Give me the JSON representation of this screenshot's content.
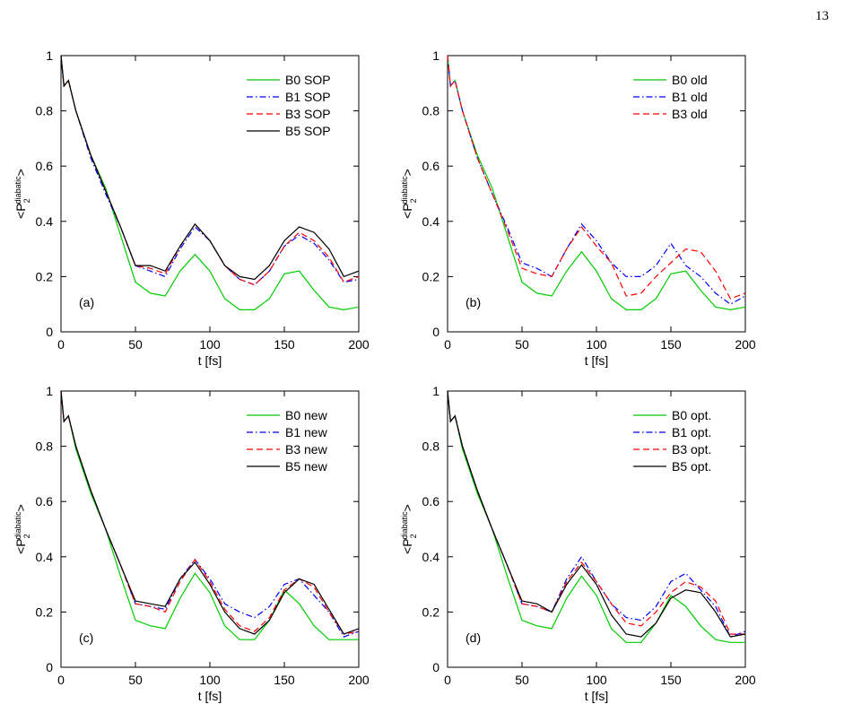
{
  "page_number": "13",
  "chart_data": [
    {
      "type": "line",
      "panel_label": "(a)",
      "xlabel": "t [fs]",
      "ylabel_parts": [
        "<P",
        "2",
        "diabatic",
        ">"
      ],
      "x": [
        0,
        2,
        5,
        10,
        20,
        30,
        40,
        50,
        60,
        70,
        80,
        90,
        100,
        110,
        120,
        130,
        140,
        150,
        160,
        170,
        180,
        190,
        200
      ],
      "xlim": [
        0,
        200
      ],
      "xticks": [
        0,
        50,
        100,
        150,
        200
      ],
      "ylim": [
        0,
        1
      ],
      "yticks": [
        0,
        0.2,
        0.4,
        0.6,
        0.8,
        1
      ],
      "legend": "upper-right",
      "series": [
        {
          "name": "B0 SOP",
          "color": "#00cc00",
          "dash": "solid",
          "values": [
            1,
            0.89,
            0.91,
            0.8,
            0.64,
            0.52,
            0.35,
            0.18,
            0.14,
            0.13,
            0.22,
            0.28,
            0.22,
            0.12,
            0.08,
            0.08,
            0.12,
            0.21,
            0.22,
            0.15,
            0.09,
            0.08,
            0.09
          ]
        },
        {
          "name": "B1 SOP",
          "color": "#0000ff",
          "dash": "dashdot",
          "values": [
            1,
            0.89,
            0.91,
            0.8,
            0.63,
            0.5,
            0.38,
            0.24,
            0.22,
            0.2,
            0.3,
            0.38,
            0.33,
            0.24,
            0.19,
            0.17,
            0.22,
            0.31,
            0.35,
            0.32,
            0.26,
            0.18,
            0.19
          ]
        },
        {
          "name": "B3 SOP",
          "color": "#ff0000",
          "dash": "dashed",
          "values": [
            1,
            0.89,
            0.91,
            0.8,
            0.64,
            0.51,
            0.38,
            0.24,
            0.23,
            0.21,
            0.31,
            0.39,
            0.33,
            0.24,
            0.19,
            0.17,
            0.22,
            0.31,
            0.36,
            0.33,
            0.27,
            0.18,
            0.2
          ]
        },
        {
          "name": "B5 SOP",
          "color": "#000000",
          "dash": "solid",
          "values": [
            1,
            0.89,
            0.91,
            0.8,
            0.64,
            0.51,
            0.38,
            0.24,
            0.24,
            0.22,
            0.31,
            0.39,
            0.33,
            0.24,
            0.2,
            0.19,
            0.24,
            0.33,
            0.38,
            0.36,
            0.3,
            0.2,
            0.22
          ]
        }
      ]
    },
    {
      "type": "line",
      "panel_label": "(b)",
      "xlabel": "t [fs]",
      "ylabel_parts": [
        "<P",
        "2",
        "diabatic",
        ">"
      ],
      "x": [
        0,
        2,
        5,
        10,
        20,
        30,
        40,
        50,
        60,
        70,
        80,
        90,
        100,
        110,
        120,
        130,
        140,
        150,
        160,
        170,
        180,
        190,
        200
      ],
      "xlim": [
        0,
        200
      ],
      "xticks": [
        0,
        50,
        100,
        150,
        200
      ],
      "ylim": [
        0,
        1
      ],
      "yticks": [
        0,
        0.2,
        0.4,
        0.6,
        0.8,
        1
      ],
      "legend": "upper-right",
      "series": [
        {
          "name": "B0 old",
          "color": "#00cc00",
          "dash": "solid",
          "values": [
            1,
            0.89,
            0.91,
            0.8,
            0.64,
            0.52,
            0.35,
            0.18,
            0.14,
            0.13,
            0.22,
            0.29,
            0.22,
            0.12,
            0.08,
            0.08,
            0.12,
            0.21,
            0.22,
            0.15,
            0.09,
            0.08,
            0.09
          ]
        },
        {
          "name": "B1 old",
          "color": "#0000ff",
          "dash": "dashdot",
          "values": [
            1,
            0.89,
            0.91,
            0.8,
            0.63,
            0.5,
            0.38,
            0.25,
            0.23,
            0.2,
            0.3,
            0.39,
            0.33,
            0.25,
            0.2,
            0.2,
            0.24,
            0.32,
            0.24,
            0.2,
            0.14,
            0.1,
            0.13
          ]
        },
        {
          "name": "B3 old",
          "color": "#ff0000",
          "dash": "dashed",
          "values": [
            1,
            0.89,
            0.91,
            0.8,
            0.63,
            0.5,
            0.37,
            0.23,
            0.21,
            0.2,
            0.3,
            0.38,
            0.31,
            0.25,
            0.13,
            0.14,
            0.2,
            0.25,
            0.3,
            0.29,
            0.22,
            0.12,
            0.14
          ]
        }
      ]
    },
    {
      "type": "line",
      "panel_label": "(c)",
      "xlabel": "t [fs]",
      "ylabel_parts": [
        "<P",
        "2",
        "diabatic",
        ">"
      ],
      "x": [
        0,
        2,
        5,
        10,
        20,
        30,
        40,
        50,
        60,
        70,
        80,
        90,
        100,
        110,
        120,
        130,
        140,
        150,
        160,
        170,
        180,
        190,
        200
      ],
      "xlim": [
        0,
        200
      ],
      "xticks": [
        0,
        50,
        100,
        150,
        200
      ],
      "ylim": [
        0,
        1
      ],
      "yticks": [
        0,
        0.2,
        0.4,
        0.6,
        0.8,
        1
      ],
      "legend": "upper-right",
      "series": [
        {
          "name": "B0 new",
          "color": "#00cc00",
          "dash": "solid",
          "values": [
            1,
            0.89,
            0.91,
            0.79,
            0.63,
            0.5,
            0.33,
            0.17,
            0.15,
            0.14,
            0.25,
            0.34,
            0.27,
            0.15,
            0.1,
            0.1,
            0.17,
            0.28,
            0.23,
            0.15,
            0.1,
            0.1,
            0.1
          ]
        },
        {
          "name": "B1 new",
          "color": "#0000ff",
          "dash": "dashdot",
          "values": [
            1,
            0.89,
            0.91,
            0.8,
            0.64,
            0.5,
            0.37,
            0.23,
            0.22,
            0.21,
            0.32,
            0.39,
            0.32,
            0.23,
            0.2,
            0.18,
            0.22,
            0.3,
            0.32,
            0.26,
            0.2,
            0.11,
            0.13
          ]
        },
        {
          "name": "B3 new",
          "color": "#ff0000",
          "dash": "dashed",
          "values": [
            1,
            0.89,
            0.91,
            0.8,
            0.64,
            0.5,
            0.37,
            0.23,
            0.22,
            0.2,
            0.31,
            0.39,
            0.31,
            0.21,
            0.15,
            0.13,
            0.18,
            0.28,
            0.32,
            0.29,
            0.2,
            0.12,
            0.13
          ]
        },
        {
          "name": "B5 new",
          "color": "#000000",
          "dash": "solid",
          "values": [
            1,
            0.89,
            0.91,
            0.8,
            0.64,
            0.5,
            0.37,
            0.24,
            0.23,
            0.22,
            0.32,
            0.38,
            0.3,
            0.2,
            0.14,
            0.12,
            0.17,
            0.27,
            0.32,
            0.3,
            0.21,
            0.12,
            0.14
          ]
        }
      ]
    },
    {
      "type": "line",
      "panel_label": "(d)",
      "xlabel": "t [fs]",
      "ylabel_parts": [
        "<P",
        "2",
        "diabatic",
        ">"
      ],
      "x": [
        0,
        2,
        5,
        10,
        20,
        30,
        40,
        50,
        60,
        70,
        80,
        90,
        100,
        110,
        120,
        130,
        140,
        150,
        160,
        170,
        180,
        190,
        200
      ],
      "xlim": [
        0,
        200
      ],
      "xticks": [
        0,
        50,
        100,
        150,
        200
      ],
      "ylim": [
        0,
        1
      ],
      "yticks": [
        0,
        0.2,
        0.4,
        0.6,
        0.8,
        1
      ],
      "legend": "upper-right",
      "series": [
        {
          "name": "B0 opt.",
          "color": "#00cc00",
          "dash": "solid",
          "values": [
            1,
            0.89,
            0.91,
            0.79,
            0.63,
            0.5,
            0.33,
            0.17,
            0.15,
            0.14,
            0.25,
            0.33,
            0.26,
            0.14,
            0.09,
            0.09,
            0.16,
            0.26,
            0.22,
            0.15,
            0.1,
            0.09,
            0.09
          ]
        },
        {
          "name": "B1 opt.",
          "color": "#0000ff",
          "dash": "dashdot",
          "values": [
            1,
            0.89,
            0.91,
            0.8,
            0.64,
            0.5,
            0.37,
            0.23,
            0.22,
            0.2,
            0.32,
            0.4,
            0.31,
            0.23,
            0.18,
            0.17,
            0.22,
            0.31,
            0.34,
            0.28,
            0.22,
            0.11,
            0.13
          ]
        },
        {
          "name": "B3 opt.",
          "color": "#ff0000",
          "dash": "dashed",
          "values": [
            1,
            0.89,
            0.91,
            0.8,
            0.64,
            0.5,
            0.37,
            0.23,
            0.22,
            0.2,
            0.31,
            0.38,
            0.31,
            0.23,
            0.16,
            0.15,
            0.2,
            0.27,
            0.31,
            0.29,
            0.24,
            0.12,
            0.12
          ]
        },
        {
          "name": "B5 opt.",
          "color": "#000000",
          "dash": "solid",
          "values": [
            1,
            0.89,
            0.91,
            0.8,
            0.64,
            0.5,
            0.37,
            0.24,
            0.23,
            0.2,
            0.3,
            0.37,
            0.3,
            0.19,
            0.12,
            0.11,
            0.16,
            0.25,
            0.28,
            0.27,
            0.2,
            0.11,
            0.12
          ]
        }
      ]
    }
  ]
}
